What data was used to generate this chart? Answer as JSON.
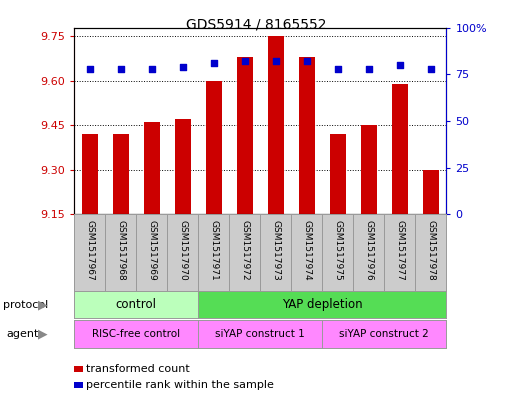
{
  "title": "GDS5914 / 8165552",
  "samples": [
    "GSM1517967",
    "GSM1517968",
    "GSM1517969",
    "GSM1517970",
    "GSM1517971",
    "GSM1517972",
    "GSM1517973",
    "GSM1517974",
    "GSM1517975",
    "GSM1517976",
    "GSM1517977",
    "GSM1517978"
  ],
  "bar_values": [
    9.42,
    9.42,
    9.46,
    9.47,
    9.6,
    9.68,
    9.75,
    9.68,
    9.42,
    9.45,
    9.59,
    9.3
  ],
  "dot_values": [
    78,
    78,
    78,
    79,
    81,
    82,
    82,
    82,
    78,
    78,
    80,
    78
  ],
  "bar_bottom": 9.15,
  "ylim_left": [
    9.15,
    9.78
  ],
  "ylim_right": [
    0,
    100
  ],
  "yticks_left": [
    9.15,
    9.3,
    9.45,
    9.6,
    9.75
  ],
  "yticks_right": [
    0,
    25,
    50,
    75,
    100
  ],
  "bar_color": "#cc0000",
  "dot_color": "#0000cc",
  "protocol_groups": [
    {
      "label": "control",
      "start": 0,
      "end": 4,
      "color": "#bbffbb"
    },
    {
      "label": "YAP depletion",
      "start": 4,
      "end": 12,
      "color": "#55dd55"
    }
  ],
  "agent_groups": [
    {
      "label": "RISC-free control",
      "start": 0,
      "end": 4,
      "color": "#ff88ff"
    },
    {
      "label": "siYAP construct 1",
      "start": 4,
      "end": 8,
      "color": "#ff88ff"
    },
    {
      "label": "siYAP construct 2",
      "start": 8,
      "end": 12,
      "color": "#ff88ff"
    }
  ],
  "legend_items": [
    {
      "label": "transformed count",
      "color": "#cc0000"
    },
    {
      "label": "percentile rank within the sample",
      "color": "#0000cc"
    }
  ],
  "xlabel_protocol": "protocol",
  "xlabel_agent": "agent",
  "bg_color": "#ffffff",
  "tick_label_color_left": "#cc0000",
  "tick_label_color_right": "#0000cc",
  "sample_cell_color": "#cccccc",
  "cell_border_color": "#999999"
}
